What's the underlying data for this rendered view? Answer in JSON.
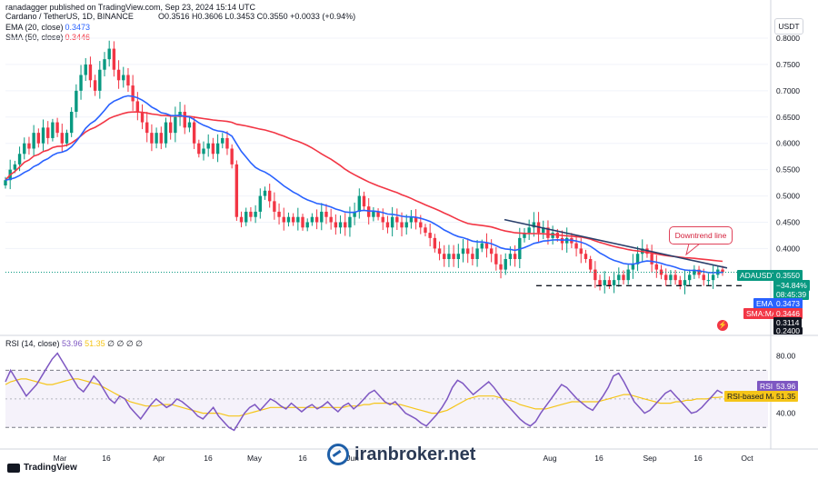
{
  "header": {
    "published": "ranadagger published on TradingView.com, Sep 23, 2024 15:14 UTC"
  },
  "instrument": {
    "title": "Cardano / TetherUS, 1D, BINANCE",
    "ohlc_text": "O0.3516 H0.3606 L0.3453 C0.3550 +0.0033 (+0.94%)",
    "ema_label": "EMA (20, close)",
    "ema_value": "0.3473",
    "sma_label": "SMA (50, close)",
    "sma_value": "0.3446"
  },
  "rsi_legend": {
    "label": "RSI (14, close)",
    "v1": "53.96",
    "v2": "51.35",
    "rest": "∅ ∅ ∅ ∅"
  },
  "currency_button": "USDT",
  "price_axis": [
    "0.8000",
    "0.7500",
    "0.7000",
    "0.6500",
    "0.6000",
    "0.5500",
    "0.5000",
    "0.4500",
    "0.4000"
  ],
  "rsi_axis": [
    "80.00",
    "60.00",
    "40.00"
  ],
  "x_axis": [
    "Mar",
    "16",
    "Apr",
    "16",
    "May",
    "16",
    "Jun",
    "Aug",
    "16",
    "Sep",
    "16",
    "Oct"
  ],
  "price_tags": {
    "symbol": "ADAUSDT",
    "price": "0.3550",
    "change": "−34.84%",
    "countdown": "08:45:39",
    "ema": "EMA",
    "ema_val": "0.3473",
    "sma": "SMA:MA",
    "sma_val": "0.3446",
    "support": "0.3114",
    "low": "0.2400"
  },
  "rsi_tags": {
    "rsi": "RSI",
    "rsi_val": "53.96",
    "ma": "RSI-based MA",
    "ma_val": "51.35"
  },
  "annotation": "Downtrend line",
  "footer": "TradingView",
  "watermark": "iranbroker.net",
  "colors": {
    "up": "#089981",
    "down": "#f23645",
    "ema": "#2962ff",
    "sma": "#f23645",
    "rsi": "#7e57c2",
    "rsi_ma": "#f5c518",
    "trendline": "#2a3f6b"
  },
  "chart_data": [
    {
      "type": "candlestick",
      "title": "Cardano / TetherUS, 1D, BINANCE",
      "ylim": [
        0.24,
        0.8
      ],
      "close_series": [
        0.53,
        0.55,
        0.56,
        0.58,
        0.6,
        0.59,
        0.62,
        0.6,
        0.63,
        0.61,
        0.64,
        0.62,
        0.6,
        0.62,
        0.66,
        0.7,
        0.73,
        0.75,
        0.72,
        0.7,
        0.74,
        0.76,
        0.78,
        0.74,
        0.72,
        0.73,
        0.71,
        0.68,
        0.66,
        0.64,
        0.62,
        0.6,
        0.62,
        0.6,
        0.64,
        0.62,
        0.65,
        0.66,
        0.63,
        0.64,
        0.6,
        0.58,
        0.59,
        0.6,
        0.58,
        0.6,
        0.61,
        0.59,
        0.56,
        0.46,
        0.45,
        0.47,
        0.46,
        0.47,
        0.5,
        0.51,
        0.49,
        0.47,
        0.46,
        0.45,
        0.46,
        0.45,
        0.46,
        0.44,
        0.45,
        0.46,
        0.45,
        0.47,
        0.46,
        0.45,
        0.44,
        0.45,
        0.44,
        0.46,
        0.47,
        0.5,
        0.48,
        0.46,
        0.47,
        0.46,
        0.45,
        0.44,
        0.46,
        0.45,
        0.44,
        0.45,
        0.46,
        0.45,
        0.44,
        0.43,
        0.42,
        0.4,
        0.39,
        0.38,
        0.39,
        0.38,
        0.39,
        0.4,
        0.39,
        0.38,
        0.4,
        0.41,
        0.4,
        0.39,
        0.37,
        0.36,
        0.38,
        0.39,
        0.38,
        0.42,
        0.43,
        0.44,
        0.45,
        0.43,
        0.44,
        0.42,
        0.43,
        0.42,
        0.41,
        0.42,
        0.41,
        0.4,
        0.39,
        0.38,
        0.36,
        0.34,
        0.33,
        0.34,
        0.33,
        0.34,
        0.35,
        0.34,
        0.36,
        0.37,
        0.39,
        0.4,
        0.39,
        0.37,
        0.36,
        0.35,
        0.34,
        0.35,
        0.34,
        0.33,
        0.34,
        0.35,
        0.36,
        0.35,
        0.34,
        0.34,
        0.35,
        0.36,
        0.355
      ],
      "ema20_last": 0.3473,
      "sma50_last": 0.3446,
      "support_level": 0.3114,
      "downtrend_line": {
        "start": [
          "Jul mid",
          0.455
        ],
        "end": [
          "Sep 22",
          0.363
        ]
      }
    },
    {
      "type": "line",
      "title": "RSI (14, close)",
      "ylim": [
        20,
        90
      ],
      "levels": [
        70,
        30
      ],
      "series": [
        {
          "name": "RSI",
          "values": [
            62,
            70,
            64,
            58,
            52,
            56,
            60,
            66,
            72,
            78,
            82,
            76,
            70,
            64,
            58,
            55,
            60,
            66,
            62,
            56,
            50,
            47,
            52,
            50,
            44,
            40,
            36,
            41,
            46,
            50,
            47,
            44,
            46,
            50,
            48,
            45,
            42,
            38,
            36,
            40,
            44,
            38,
            34,
            30,
            28,
            34,
            40,
            44,
            46,
            42,
            46,
            50,
            48,
            45,
            43,
            47,
            44,
            41,
            44,
            46,
            43,
            45,
            48,
            44,
            41,
            45,
            47,
            43,
            46,
            50,
            54,
            56,
            52,
            48,
            46,
            48,
            44,
            40,
            38,
            36,
            33,
            31,
            35,
            39,
            44,
            50,
            58,
            63,
            61,
            57,
            53,
            56,
            59,
            62,
            58,
            53,
            48,
            44,
            40,
            36,
            33,
            31,
            34,
            40,
            45,
            50,
            55,
            60,
            58,
            54,
            50,
            47,
            44,
            42,
            47,
            52,
            58,
            66,
            68,
            62,
            55,
            48,
            44,
            40,
            42,
            46,
            50,
            54,
            56,
            52,
            48,
            44,
            40,
            41,
            44,
            48,
            52,
            56,
            53.96
          ]
        },
        {
          "name": "RSI-based MA",
          "values": [
            60,
            62,
            63,
            64,
            64,
            63,
            62,
            61,
            60,
            60,
            61,
            62,
            63,
            64,
            64,
            63,
            62,
            61,
            60,
            58,
            56,
            54,
            52,
            50,
            48,
            47,
            46,
            45,
            45,
            45,
            46,
            46,
            46,
            45,
            44,
            43,
            42,
            41,
            40,
            40,
            40,
            40,
            39,
            38,
            38,
            38,
            39,
            40,
            41,
            42,
            43,
            44,
            44,
            44,
            44,
            44,
            44,
            44,
            44,
            44,
            44,
            44,
            44,
            44,
            44,
            44,
            45,
            45,
            45,
            46,
            46,
            47,
            47,
            47,
            47,
            46,
            46,
            45,
            44,
            43,
            42,
            41,
            40,
            40,
            41,
            42,
            44,
            46,
            48,
            50,
            51,
            52,
            52,
            52,
            52,
            51,
            50,
            49,
            48,
            46,
            45,
            44,
            43,
            43,
            43,
            44,
            45,
            46,
            47,
            48,
            48,
            48,
            48,
            48,
            48,
            49,
            50,
            51,
            52,
            53,
            53,
            52,
            51,
            50,
            49,
            48,
            47,
            47,
            47,
            48,
            48,
            49,
            49,
            50,
            50,
            50,
            51,
            51,
            51.35
          ]
        }
      ],
      "tick_labels": [
        "80.00",
        "60.00",
        "40.00"
      ]
    }
  ]
}
